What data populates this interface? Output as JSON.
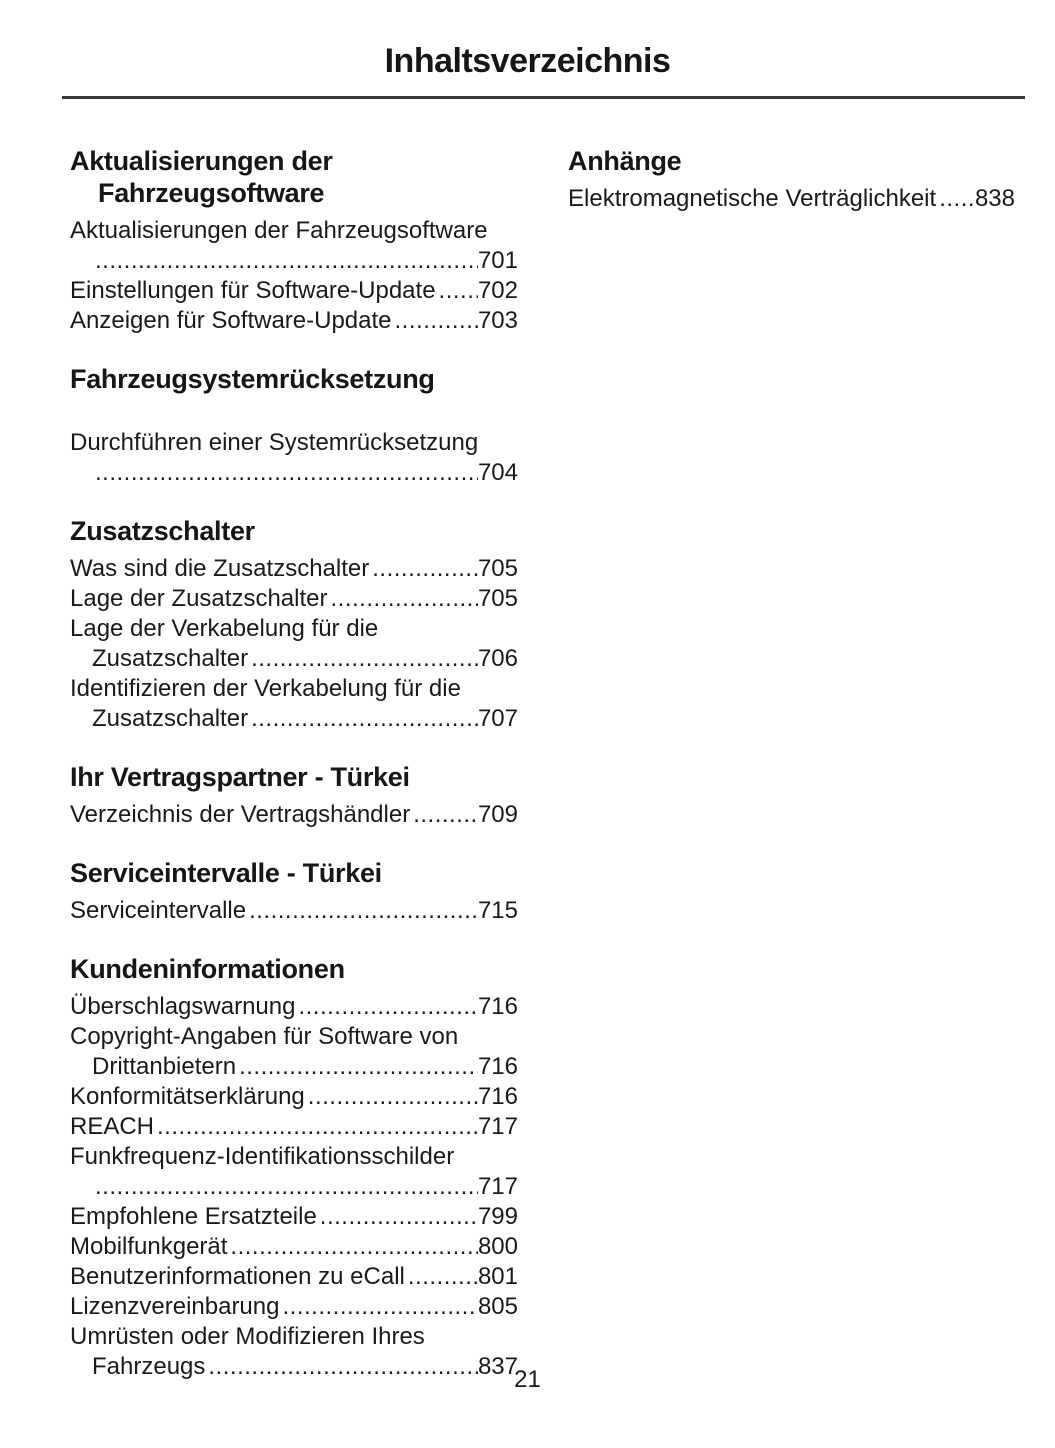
{
  "document": {
    "title": "Inhaltsverzeichnis",
    "page_number": "21"
  },
  "toc": {
    "left_column": [
      {
        "heading_lines": [
          "Aktualisierungen der",
          "Fahrzeugsoftware"
        ],
        "gap_after_heading": false,
        "entries": [
          {
            "lines": [
              {
                "text": "Aktualisierungen der Fahrzeugsoftware"
              },
              {
                "text": "",
                "page": "701"
              }
            ]
          },
          {
            "lines": [
              {
                "text": "Einstellungen für Software-Update",
                "page": "702"
              }
            ]
          },
          {
            "lines": [
              {
                "text": "Anzeigen für Software-Update",
                "page": "703"
              }
            ]
          }
        ]
      },
      {
        "heading_lines": [
          "Fahrzeugsystemrücksetzung"
        ],
        "gap_after_heading": true,
        "entries": [
          {
            "lines": [
              {
                "text": "Durchführen einer Systemrücksetzung"
              },
              {
                "text": "",
                "page": "704"
              }
            ]
          }
        ]
      },
      {
        "heading_lines": [
          "Zusatzschalter"
        ],
        "gap_after_heading": false,
        "entries": [
          {
            "lines": [
              {
                "text": "Was sind die Zusatzschalter",
                "page": "705"
              }
            ]
          },
          {
            "lines": [
              {
                "text": "Lage der Zusatzschalter",
                "page": "705"
              }
            ]
          },
          {
            "lines": [
              {
                "text": "Lage der Verkabelung für die"
              },
              {
                "text": "Zusatzschalter",
                "page": "706"
              }
            ]
          },
          {
            "lines": [
              {
                "text": "Identifizieren der Verkabelung für die"
              },
              {
                "text": "Zusatzschalter",
                "page": "707"
              }
            ]
          }
        ]
      },
      {
        "heading_lines": [
          "Ihr Vertragspartner - Türkei"
        ],
        "gap_after_heading": false,
        "entries": [
          {
            "lines": [
              {
                "text": "Verzeichnis der Vertragshändler",
                "page": "709"
              }
            ]
          }
        ]
      },
      {
        "heading_lines": [
          "Serviceintervalle - Türkei"
        ],
        "gap_after_heading": false,
        "entries": [
          {
            "lines": [
              {
                "text": "Serviceintervalle",
                "page": "715"
              }
            ]
          }
        ]
      },
      {
        "heading_lines": [
          "Kundeninformationen"
        ],
        "gap_after_heading": false,
        "entries": [
          {
            "lines": [
              {
                "text": "Überschlagswarnung",
                "page": "716"
              }
            ]
          },
          {
            "lines": [
              {
                "text": "Copyright-Angaben für Software von"
              },
              {
                "text": "Drittanbietern",
                "page": "716"
              }
            ]
          },
          {
            "lines": [
              {
                "text": "Konformitätserklärung",
                "page": "716"
              }
            ]
          },
          {
            "lines": [
              {
                "text": "REACH",
                "page": "717"
              }
            ]
          },
          {
            "lines": [
              {
                "text": "Funkfrequenz-Identifikationsschilder"
              },
              {
                "text": "",
                "page": "717"
              }
            ]
          },
          {
            "lines": [
              {
                "text": "Empfohlene Ersatzteile",
                "page": "799"
              }
            ]
          },
          {
            "lines": [
              {
                "text": "Mobilfunkgerät",
                "page": "800"
              }
            ]
          },
          {
            "lines": [
              {
                "text": "Benutzerinformationen zu eCall",
                "page": "801"
              }
            ]
          },
          {
            "lines": [
              {
                "text": "Lizenzvereinbarung",
                "page": "805"
              }
            ]
          },
          {
            "lines": [
              {
                "text": "Umrüsten oder Modifizieren Ihres"
              },
              {
                "text": "Fahrzeugs",
                "page": "837"
              }
            ]
          }
        ]
      }
    ],
    "right_column": [
      {
        "heading_lines": [
          "Anhänge"
        ],
        "gap_after_heading": false,
        "entries": [
          {
            "lines": [
              {
                "text": "Elektromagnetische Verträglichkeit",
                "page": "838"
              }
            ]
          }
        ]
      }
    ]
  }
}
